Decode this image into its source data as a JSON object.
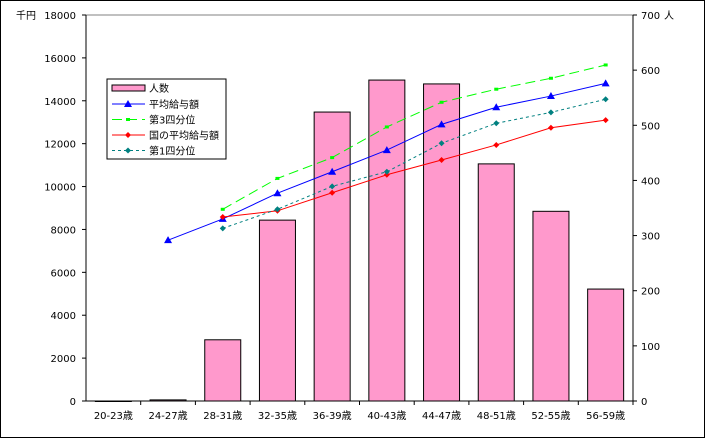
{
  "chart_data": {
    "type": "bar+line",
    "categories": [
      "20-23歳",
      "24-27歳",
      "28-31歳",
      "32-35歳",
      "36-39歳",
      "40-43歳",
      "44-47歳",
      "48-51歳",
      "52-55歳",
      "56-59歳"
    ],
    "left_axis": {
      "unit": "千円",
      "ylim": [
        0,
        18000
      ],
      "ticks": [
        0,
        2000,
        4000,
        6000,
        8000,
        10000,
        12000,
        14000,
        16000,
        18000
      ]
    },
    "right_axis": {
      "unit": "人",
      "ylim": [
        0,
        700
      ],
      "ticks": [
        0,
        100,
        200,
        300,
        400,
        500,
        600,
        700
      ]
    },
    "bars": {
      "name": "人数",
      "axis": "right",
      "color": "#ff99cc",
      "values": [
        0,
        2,
        111,
        328,
        524,
        582,
        575,
        430,
        344,
        203
      ]
    },
    "series": [
      {
        "name": "平均給与額",
        "axis": "left",
        "color": "#0000ff",
        "style": "solid",
        "marker": "triangle",
        "values": [
          null,
          7500,
          8490,
          9690,
          10690,
          11700,
          12900,
          13700,
          14220,
          14810
        ]
      },
      {
        "name": "第3四分位",
        "axis": "left",
        "color": "#00ff00",
        "style": "long-dash",
        "marker": "dash",
        "values": [
          null,
          null,
          8940,
          10380,
          11350,
          12780,
          13930,
          14540,
          15050,
          15670
        ]
      },
      {
        "name": "国の平均給与額",
        "axis": "left",
        "color": "#ff0000",
        "style": "solid",
        "marker": "diamond",
        "values": [
          null,
          null,
          8580,
          8870,
          9710,
          10550,
          11240,
          11940,
          12740,
          13100
        ]
      },
      {
        "name": "第1四分位",
        "axis": "left",
        "color": "#008080",
        "style": "short-dash",
        "marker": "diamond",
        "values": [
          null,
          null,
          8050,
          8940,
          10010,
          10690,
          12020,
          12950,
          13460,
          14070
        ]
      }
    ],
    "legend": "upper-left inside plot",
    "grid": false
  }
}
